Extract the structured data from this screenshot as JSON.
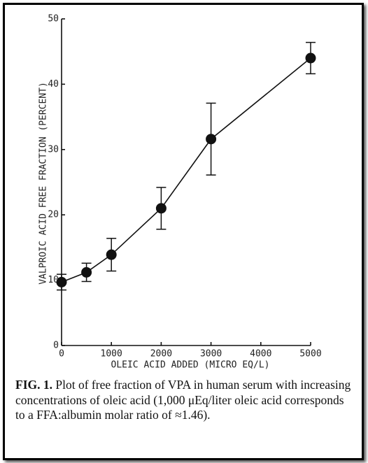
{
  "chart_data": {
    "type": "line",
    "xlabel": "OLEIC ACID ADDED (MICRO EQ/L)",
    "ylabel": "VALPROIC ACID FREE FRACTION (PERCENT)",
    "x": [
      0,
      500,
      1000,
      2000,
      3000,
      5000
    ],
    "series": [
      {
        "color": "#111111",
        "values": [
          9.7,
          11.2,
          13.9,
          21.0,
          31.6,
          44.0
        ],
        "errors": [
          1.2,
          1.4,
          2.5,
          3.2,
          5.5,
          2.4
        ]
      }
    ],
    "xlim": [
      0,
      5000
    ],
    "xticks": [
      0,
      1000,
      2000,
      3000,
      4000,
      5000
    ],
    "ylim": [
      0,
      50
    ],
    "yticks": [
      0,
      10,
      20,
      30,
      40,
      50
    ],
    "caption_label": "FIG. 1.",
    "caption": "Plot of free fraction of VPA in human serum with increasing concentrations of oleic acid (1,000 μEq/liter oleic acid corresponds to a FFA:albumin molar ratio of ≈1.46)."
  }
}
